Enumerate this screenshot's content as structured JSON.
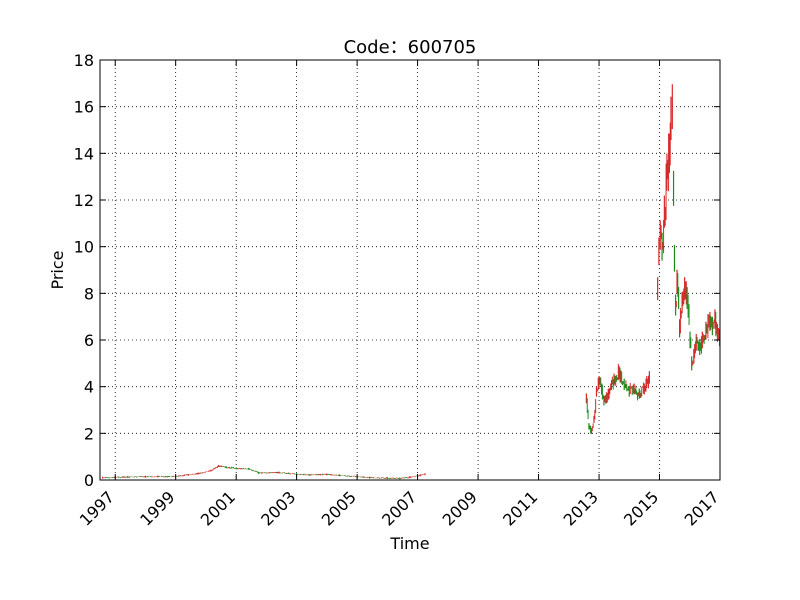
{
  "chart_data": {
    "type": "candlestick",
    "title": "Code：600705",
    "xlabel": "Time",
    "ylabel": "Price",
    "xlim": [
      "1996-07-01",
      "2017-01-01"
    ],
    "ylim": [
      0,
      18
    ],
    "x_ticks": [
      "1997",
      "1999",
      "2001",
      "2003",
      "2005",
      "2007",
      "2009",
      "2011",
      "2013",
      "2015",
      "2017"
    ],
    "y_ticks": [
      0,
      2,
      4,
      6,
      8,
      10,
      12,
      14,
      16,
      18
    ],
    "grid": true,
    "colors": {
      "up": "#d62728",
      "down": "#1a8c1a",
      "grid": "#000000"
    },
    "series": [
      {
        "segment": 1,
        "points": [
          {
            "x": "1996-08-01",
            "y": 0.1
          },
          {
            "x": "1997-01-01",
            "y": 0.12
          },
          {
            "x": "1997-06-01",
            "y": 0.13
          },
          {
            "x": "1998-01-01",
            "y": 0.14
          },
          {
            "x": "1998-06-01",
            "y": 0.15
          },
          {
            "x": "1999-01-01",
            "y": 0.15
          },
          {
            "x": "1999-06-01",
            "y": 0.22
          },
          {
            "x": "1999-10-01",
            "y": 0.28
          },
          {
            "x": "2000-03-01",
            "y": 0.4
          },
          {
            "x": "2000-06-01",
            "y": 0.6
          },
          {
            "x": "2000-09-01",
            "y": 0.55
          },
          {
            "x": "2001-01-01",
            "y": 0.5
          },
          {
            "x": "2001-06-01",
            "y": 0.48
          },
          {
            "x": "2001-10-01",
            "y": 0.3
          },
          {
            "x": "2002-06-01",
            "y": 0.32
          },
          {
            "x": "2003-01-01",
            "y": 0.25
          },
          {
            "x": "2003-06-01",
            "y": 0.22
          },
          {
            "x": "2004-01-01",
            "y": 0.24
          },
          {
            "x": "2004-06-01",
            "y": 0.2
          },
          {
            "x": "2005-01-01",
            "y": 0.14
          },
          {
            "x": "2005-06-01",
            "y": 0.1
          },
          {
            "x": "2006-01-01",
            "y": 0.08
          },
          {
            "x": "2006-06-01",
            "y": 0.07
          },
          {
            "x": "2006-10-01",
            "y": 0.12
          },
          {
            "x": "2007-02-01",
            "y": 0.2
          },
          {
            "x": "2007-04-01",
            "y": 0.25
          }
        ]
      },
      {
        "segment": 2,
        "points": [
          {
            "x": "2012-08-01",
            "y": 3.5
          },
          {
            "x": "2012-09-01",
            "y": 2.3
          },
          {
            "x": "2012-10-01",
            "y": 2.1
          },
          {
            "x": "2012-11-01",
            "y": 2.6
          },
          {
            "x": "2012-12-01",
            "y": 3.8
          },
          {
            "x": "2013-01-01",
            "y": 4.2
          },
          {
            "x": "2013-02-01",
            "y": 3.9
          },
          {
            "x": "2013-03-01",
            "y": 3.4
          },
          {
            "x": "2013-05-01",
            "y": 3.7
          },
          {
            "x": "2013-07-01",
            "y": 4.3
          },
          {
            "x": "2013-09-01",
            "y": 4.6
          },
          {
            "x": "2013-11-01",
            "y": 4.1
          },
          {
            "x": "2014-01-01",
            "y": 3.8
          },
          {
            "x": "2014-03-01",
            "y": 3.9
          },
          {
            "x": "2014-05-01",
            "y": 3.7
          },
          {
            "x": "2014-07-01",
            "y": 3.9
          },
          {
            "x": "2014-08-01",
            "y": 4.2
          },
          {
            "x": "2014-09-01",
            "y": 4.4
          }
        ]
      },
      {
        "segment": 3,
        "points": [
          {
            "x": "2014-12-10",
            "y": 8.2
          },
          {
            "x": "2014-12-25",
            "y": 9.8
          },
          {
            "x": "2015-01-10",
            "y": 10.5
          },
          {
            "x": "2015-02-01",
            "y": 10.0
          },
          {
            "x": "2015-03-01",
            "y": 11.5
          },
          {
            "x": "2015-04-01",
            "y": 13.2
          },
          {
            "x": "2015-05-01",
            "y": 14.0
          },
          {
            "x": "2015-05-20",
            "y": 15.5
          },
          {
            "x": "2015-06-05",
            "y": 16.0
          },
          {
            "x": "2015-06-20",
            "y": 12.5
          },
          {
            "x": "2015-07-01",
            "y": 9.5
          },
          {
            "x": "2015-07-15",
            "y": 7.5
          },
          {
            "x": "2015-08-01",
            "y": 8.5
          },
          {
            "x": "2015-08-20",
            "y": 7.8
          },
          {
            "x": "2015-09-01",
            "y": 6.5
          },
          {
            "x": "2015-10-01",
            "y": 7.6
          },
          {
            "x": "2015-11-01",
            "y": 8.2
          },
          {
            "x": "2015-12-01",
            "y": 7.8
          },
          {
            "x": "2016-01-05",
            "y": 6.0
          },
          {
            "x": "2016-01-25",
            "y": 5.0
          },
          {
            "x": "2016-02-20",
            "y": 5.3
          },
          {
            "x": "2016-03-20",
            "y": 5.9
          },
          {
            "x": "2016-05-01",
            "y": 5.7
          },
          {
            "x": "2016-06-01",
            "y": 6.0
          },
          {
            "x": "2016-07-15",
            "y": 6.4
          },
          {
            "x": "2016-09-01",
            "y": 6.8
          },
          {
            "x": "2016-10-01",
            "y": 6.6
          },
          {
            "x": "2016-11-01",
            "y": 6.9
          },
          {
            "x": "2016-12-01",
            "y": 6.3
          },
          {
            "x": "2016-12-28",
            "y": 6.1
          }
        ]
      }
    ]
  }
}
